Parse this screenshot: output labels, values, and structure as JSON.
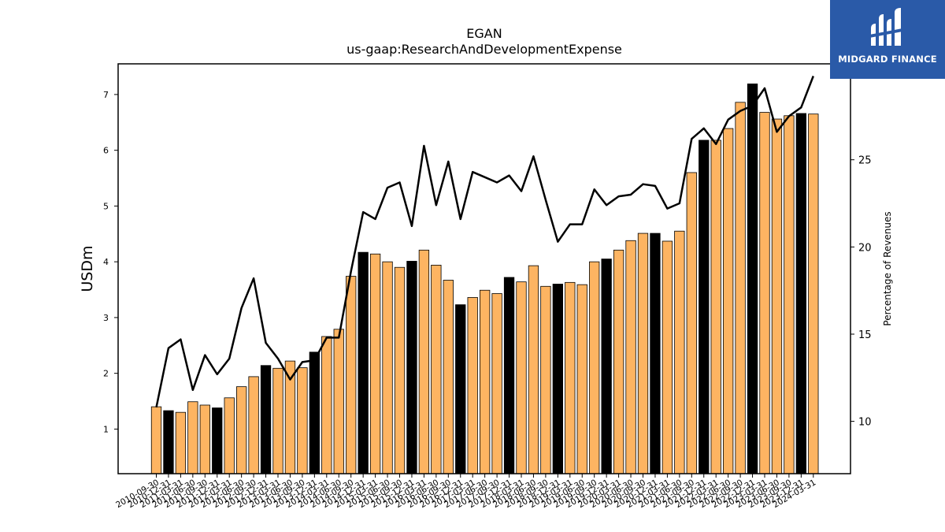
{
  "logo": {
    "text": "MIDGARD FINANCE"
  },
  "chart_data": {
    "type": "bar",
    "title": "EGAN",
    "subtitle": "us-gaap:ResearchAndDevelopmentExpense",
    "ylabel": "USDm",
    "y2label": "Percentage of Revenues",
    "ylim": [
      0.2,
      7.55
    ],
    "y2lim": [
      7.0,
      30.5
    ],
    "yticks": [
      1,
      2,
      3,
      4,
      5,
      6,
      7
    ],
    "y2ticks": [
      10,
      15,
      20,
      25
    ],
    "colors": {
      "bar": "#fdb462",
      "bar_highlight": "#000000",
      "line": "#000000"
    },
    "categories": [
      "2010-09-30",
      "2010-12-31",
      "2011-03-31",
      "2011-06-30",
      "2011-09-30",
      "2011-12-31",
      "2012-03-31",
      "2012-06-30",
      "2012-09-30",
      "2012-12-31",
      "2013-03-31",
      "2013-06-30",
      "2013-09-30",
      "2013-12-31",
      "2014-03-31",
      "2014-06-30",
      "2014-09-30",
      "2014-12-31",
      "2015-03-31",
      "2015-06-30",
      "2015-09-30",
      "2015-12-31",
      "2016-03-31",
      "2016-06-30",
      "2016-09-30",
      "2016-12-31",
      "2017-03-31",
      "2017-06-30",
      "2017-09-30",
      "2017-12-31",
      "2018-03-31",
      "2018-06-30",
      "2018-09-30",
      "2018-12-31",
      "2019-03-31",
      "2019-06-30",
      "2019-09-30",
      "2019-12-31",
      "2020-03-31",
      "2020-06-30",
      "2020-09-30",
      "2020-12-31",
      "2021-03-31",
      "2021-06-30",
      "2021-09-30",
      "2021-12-31",
      "2022-03-31",
      "2022-06-30",
      "2022-09-30",
      "2022-12-31",
      "2023-03-31",
      "2023-06-30",
      "2023-09-30",
      "2023-12-31",
      "2024-03-31"
    ],
    "series": [
      {
        "values": [
          1.4,
          1.33,
          1.3,
          1.49,
          1.43,
          1.38,
          1.56,
          1.76,
          1.94,
          2.14,
          2.09,
          2.22,
          2.1,
          2.38,
          2.66,
          2.79,
          3.74,
          4.17,
          4.14,
          4.0,
          3.9,
          4.01,
          4.21,
          3.94,
          3.67,
          3.23,
          3.36,
          3.49,
          3.43,
          3.72,
          3.64,
          3.93,
          3.56,
          3.6,
          3.63,
          3.59,
          4.0,
          4.05,
          4.21,
          4.38,
          4.51,
          4.51,
          4.37,
          4.55,
          5.6,
          6.18,
          6.18,
          6.39,
          6.86,
          7.19,
          6.68,
          6.56,
          6.62,
          6.66,
          6.65
        ]
      },
      {
        "values": [
          10.8,
          14.2,
          14.7,
          11.8,
          13.8,
          12.7,
          13.6,
          16.5,
          18.2,
          14.5,
          13.6,
          12.4,
          13.4,
          13.5,
          14.8,
          14.8,
          18.6,
          22.0,
          21.6,
          23.4,
          23.7,
          21.2,
          25.8,
          22.4,
          24.9,
          21.6,
          24.3,
          24.0,
          23.7,
          24.1,
          23.2,
          25.2,
          22.7,
          20.3,
          21.3,
          21.3,
          23.3,
          22.4,
          22.9,
          23.0,
          23.6,
          23.5,
          22.2,
          22.5,
          26.2,
          26.8,
          25.9,
          27.3,
          27.8,
          28.1,
          29.1,
          26.6,
          27.5,
          28.0,
          29.8
        ]
      }
    ],
    "highlight_indices": [
      1,
      5,
      9,
      13,
      17,
      21,
      25,
      29,
      33,
      37,
      41,
      45,
      49,
      53
    ]
  }
}
